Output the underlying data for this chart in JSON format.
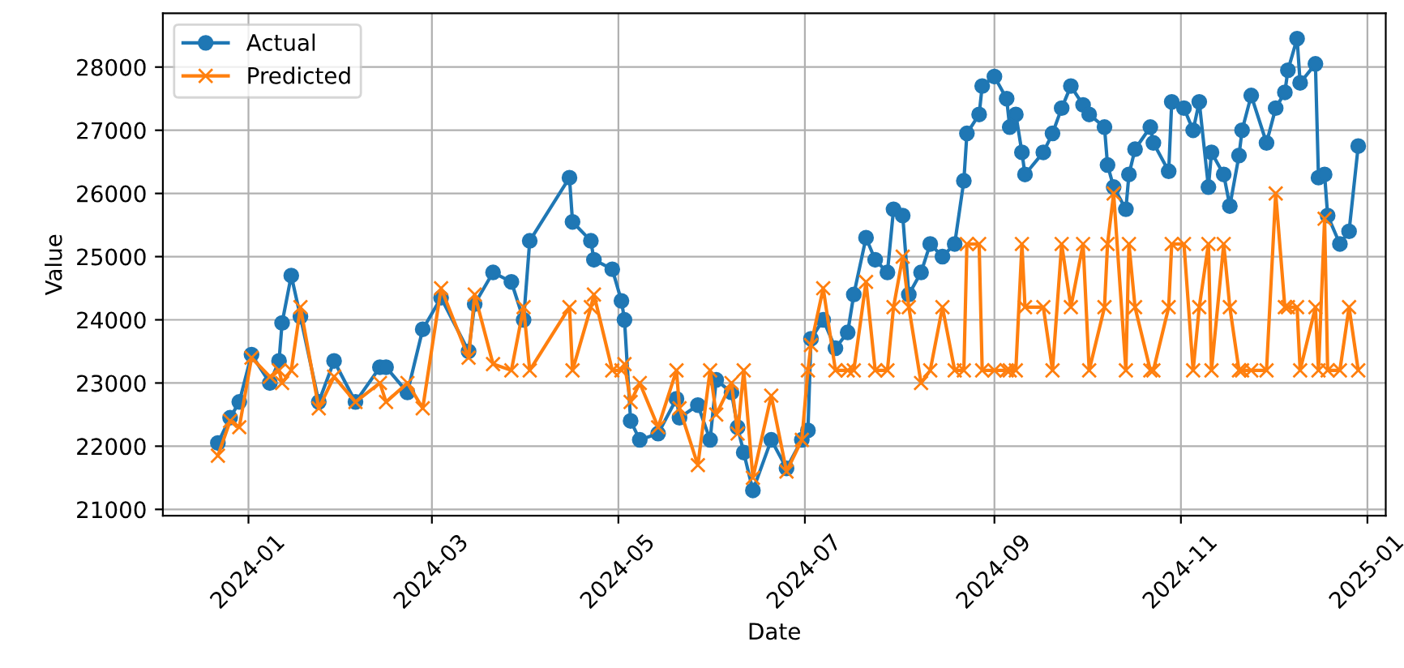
{
  "chart_data": {
    "type": "line",
    "xlabel": "Date",
    "ylabel": "Value",
    "x": [
      "2023-12-22",
      "2023-12-26",
      "2023-12-29",
      "2024-01-02",
      "2024-01-08",
      "2024-01-11",
      "2024-01-12",
      "2024-01-15",
      "2024-01-18",
      "2024-01-24",
      "2024-01-29",
      "2024-02-05",
      "2024-02-13",
      "2024-02-15",
      "2024-02-22",
      "2024-02-27",
      "2024-03-04",
      "2024-03-13",
      "2024-03-15",
      "2024-03-21",
      "2024-03-27",
      "2024-03-31",
      "2024-04-02",
      "2024-04-15",
      "2024-04-16",
      "2024-04-22",
      "2024-04-23",
      "2024-04-29",
      "2024-05-02",
      "2024-05-03",
      "2024-05-05",
      "2024-05-08",
      "2024-05-14",
      "2024-05-20",
      "2024-05-21",
      "2024-05-27",
      "2024-05-31",
      "2024-06-02",
      "2024-06-07",
      "2024-06-09",
      "2024-06-11",
      "2024-06-14",
      "2024-06-20",
      "2024-06-25",
      "2024-06-30",
      "2024-07-02",
      "2024-07-03",
      "2024-07-07",
      "2024-07-11",
      "2024-07-15",
      "2024-07-17",
      "2024-07-21",
      "2024-07-24",
      "2024-07-28",
      "2024-07-30",
      "2024-08-02",
      "2024-08-04",
      "2024-08-08",
      "2024-08-11",
      "2024-08-15",
      "2024-08-19",
      "2024-08-22",
      "2024-08-23",
      "2024-08-27",
      "2024-08-28",
      "2024-09-01",
      "2024-09-05",
      "2024-09-06",
      "2024-09-08",
      "2024-09-10",
      "2024-09-11",
      "2024-09-17",
      "2024-09-20",
      "2024-09-23",
      "2024-09-26",
      "2024-09-30",
      "2024-10-02",
      "2024-10-07",
      "2024-10-08",
      "2024-10-10",
      "2024-10-14",
      "2024-10-15",
      "2024-10-17",
      "2024-10-22",
      "2024-10-23",
      "2024-10-28",
      "2024-10-29",
      "2024-11-02",
      "2024-11-05",
      "2024-11-07",
      "2024-11-10",
      "2024-11-11",
      "2024-11-15",
      "2024-11-17",
      "2024-11-20",
      "2024-11-21",
      "2024-11-24",
      "2024-11-29",
      "2024-12-02",
      "2024-12-05",
      "2024-12-06",
      "2024-12-09",
      "2024-12-10",
      "2024-12-15",
      "2024-12-16",
      "2024-12-18",
      "2024-12-19",
      "2024-12-23",
      "2024-12-26",
      "2024-12-29"
    ],
    "series": [
      {
        "name": "Actual",
        "color": "#1f77b4",
        "marker": "circle",
        "values": [
          22050,
          22450,
          22700,
          23450,
          23000,
          23350,
          23950,
          24700,
          24050,
          22700,
          23350,
          22700,
          23250,
          23250,
          22850,
          23850,
          24350,
          23500,
          24250,
          24750,
          24600,
          24000,
          25250,
          26250,
          25550,
          25250,
          24950,
          24800,
          24300,
          24000,
          22400,
          22100,
          22200,
          22750,
          22450,
          22650,
          22100,
          23050,
          22850,
          22300,
          21900,
          21300,
          22100,
          21650,
          22100,
          22250,
          23700,
          24000,
          23550,
          23800,
          24400,
          25300,
          24950,
          24750,
          25750,
          25650,
          24400,
          24750,
          25200,
          25000,
          25200,
          26200,
          26950,
          27250,
          27700,
          27850,
          27500,
          27050,
          27250,
          26650,
          26300,
          26650,
          26950,
          27350,
          27700,
          27400,
          27250,
          27050,
          26450,
          26100,
          25750,
          26300,
          26700,
          27050,
          26800,
          26350,
          27450,
          27350,
          27000,
          27450,
          26100,
          26650,
          26300,
          25800,
          26600,
          27000,
          27550,
          26800,
          27350,
          27600,
          27950,
          28450,
          27750,
          28050,
          26250,
          26300,
          25650,
          25200,
          25400,
          26750
        ]
      },
      {
        "name": "Predicted",
        "color": "#ff7f0e",
        "marker": "cross",
        "values": [
          21850,
          22400,
          22300,
          23400,
          23100,
          23200,
          23000,
          23200,
          24200,
          22600,
          23100,
          22700,
          23000,
          22700,
          23000,
          22600,
          24500,
          23400,
          24400,
          23300,
          23200,
          24200,
          23200,
          24200,
          23200,
          24200,
          24400,
          23200,
          23200,
          23300,
          22700,
          23000,
          22300,
          23200,
          22600,
          21700,
          23200,
          22500,
          23000,
          22200,
          23200,
          21500,
          22800,
          21600,
          22100,
          23200,
          23600,
          24500,
          23200,
          23200,
          23200,
          24600,
          23200,
          23200,
          24200,
          25000,
          24200,
          23000,
          23200,
          24200,
          23200,
          23200,
          25200,
          25200,
          23200,
          23200,
          23200,
          23200,
          23200,
          25200,
          24200,
          24200,
          23200,
          25200,
          24200,
          25200,
          23200,
          24200,
          25200,
          26000,
          23200,
          25200,
          24200,
          23200,
          23200,
          24200,
          25200,
          25200,
          23200,
          24200,
          25200,
          23200,
          25200,
          24200,
          23200,
          23200,
          23200,
          23200,
          26000,
          24200,
          24200,
          24200,
          23200,
          24200,
          23200,
          25600,
          23200,
          23200,
          24200,
          23200
        ]
      }
    ],
    "xlim": [
      "2023-12-04",
      "2025-01-07"
    ],
    "xticks": [
      {
        "value": "2024-01-01",
        "label": "2024-01"
      },
      {
        "value": "2024-03-01",
        "label": "2024-03"
      },
      {
        "value": "2024-05-01",
        "label": "2024-05"
      },
      {
        "value": "2024-07-01",
        "label": "2024-07"
      },
      {
        "value": "2024-09-01",
        "label": "2024-09"
      },
      {
        "value": "2024-11-01",
        "label": "2024-11"
      },
      {
        "value": "2025-01-01",
        "label": "2025-01"
      }
    ],
    "ylim": [
      20900,
      28850
    ],
    "yticks": [
      21000,
      22000,
      23000,
      24000,
      25000,
      26000,
      27000,
      28000
    ],
    "grid": true,
    "legend": "top left",
    "line_style": "solid"
  }
}
